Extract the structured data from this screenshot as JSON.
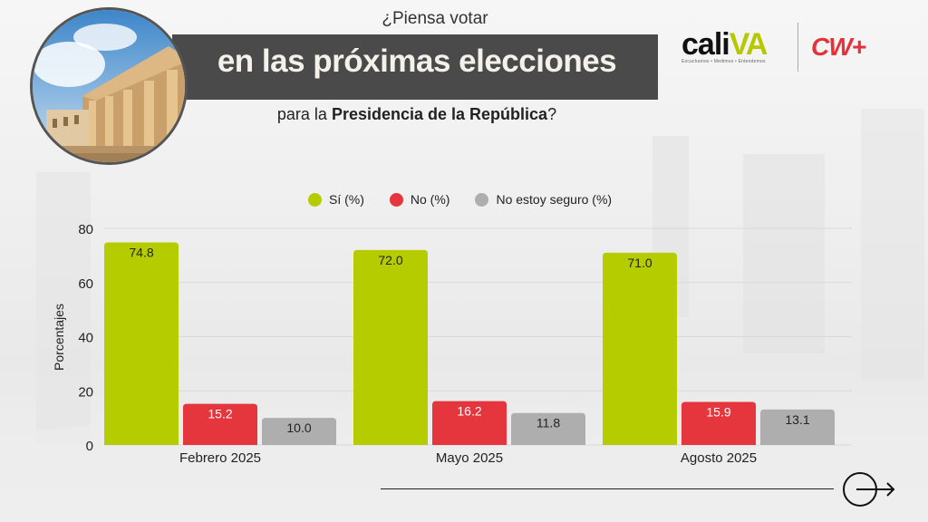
{
  "header": {
    "title_top": "¿Piensa votar",
    "title_main": "en las próximas elecciones",
    "title_sub_prefix": "para la ",
    "title_sub_bold": "Presidencia de la República",
    "title_sub_suffix": "?"
  },
  "logos": {
    "cali_part1": "cali",
    "cali_part2": "VA",
    "cali_tagline": "Escuchamos • Medimos • Entendemos",
    "cw": "CW+"
  },
  "colors": {
    "si": "#b5cc00",
    "no": "#e5353d",
    "unsure": "#aeaeae",
    "banner": "#4a4a4a"
  },
  "chart_data": {
    "type": "bar",
    "title": "¿Piensa votar en las próximas elecciones para la Presidencia de la República?",
    "xlabel": "",
    "ylabel": "Porcentajes",
    "ylim": [
      0,
      80
    ],
    "yticks": [
      0,
      20,
      40,
      60,
      80
    ],
    "grid": true,
    "legend_position": "top-center",
    "categories": [
      "Febrero 2025",
      "Mayo 2025",
      "Agosto 2025"
    ],
    "series": [
      {
        "name": "Sí (%)",
        "color": "#b5cc00",
        "label_color": "#222222",
        "values": [
          74.8,
          72.0,
          71.0
        ]
      },
      {
        "name": "No (%)",
        "color": "#e5353d",
        "label_color": "#ffffff",
        "values": [
          15.2,
          16.2,
          15.9
        ]
      },
      {
        "name": "No estoy seguro (%)",
        "color": "#aeaeae",
        "label_color": "#222222",
        "values": [
          10.0,
          11.8,
          13.1
        ]
      }
    ]
  },
  "navigation": {
    "next_icon": "arrow-right-circle-icon"
  }
}
